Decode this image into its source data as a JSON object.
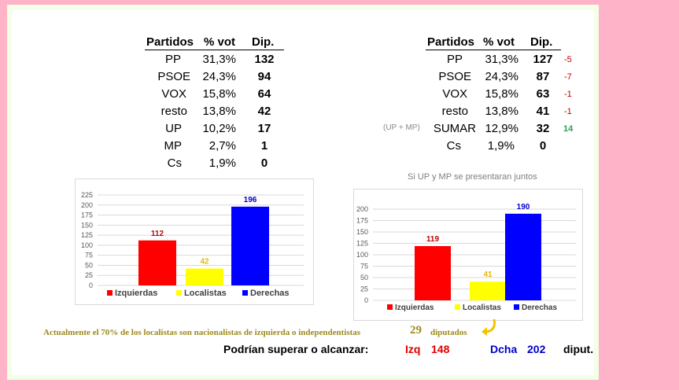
{
  "left_table": {
    "headers": [
      "Partidos",
      "% vot",
      "Dip."
    ],
    "rows": [
      {
        "party": "PP",
        "pct": "31,3%",
        "dip": "132"
      },
      {
        "party": "PSOE",
        "pct": "24,3%",
        "dip": "94"
      },
      {
        "party": "VOX",
        "pct": "15,8%",
        "dip": "64"
      },
      {
        "party": "resto",
        "pct": "13,8%",
        "dip": "42"
      },
      {
        "party": "UP",
        "pct": "10,2%",
        "dip": "17"
      },
      {
        "party": "MP",
        "pct": "2,7%",
        "dip": "1"
      },
      {
        "party": "Cs",
        "pct": "1,9%",
        "dip": "0"
      }
    ]
  },
  "right_table": {
    "headers": [
      "Partidos",
      "% vot",
      "Dip."
    ],
    "rows": [
      {
        "prefix": "",
        "party": "PP",
        "pct": "31,3%",
        "dip": "127",
        "delta": "-5",
        "delta_color": "#c00000"
      },
      {
        "prefix": "",
        "party": "PSOE",
        "pct": "24,3%",
        "dip": "87",
        "delta": "-7",
        "delta_color": "#c00000"
      },
      {
        "prefix": "",
        "party": "VOX",
        "pct": "15,8%",
        "dip": "63",
        "delta": "-1",
        "delta_color": "#c00000"
      },
      {
        "prefix": "",
        "party": "resto",
        "pct": "13,8%",
        "dip": "41",
        "delta": "-1",
        "delta_color": "#c00000"
      },
      {
        "prefix": "(UP + MP)",
        "party": "SUMAR",
        "pct": "12,9%",
        "dip": "32",
        "delta": "14",
        "delta_color": "#2e9e4f"
      },
      {
        "prefix": "",
        "party": "Cs",
        "pct": "1,9%",
        "dip": "0",
        "delta": "",
        "delta_color": "#c00000"
      }
    ]
  },
  "right_caption": "Si UP y MP se presentaran juntos",
  "chart_data": [
    {
      "type": "bar",
      "categories": [
        "Izquierdas",
        "Localistas",
        "Derechas"
      ],
      "values": [
        112,
        42,
        196
      ],
      "colors": [
        "#ff0000",
        "#ffff00",
        "#0000ff"
      ],
      "label_colors": [
        "#c00000",
        "#e6b800",
        "#0000cc"
      ],
      "ylim": [
        0,
        225
      ],
      "yticks": [
        0,
        25,
        50,
        75,
        100,
        125,
        150,
        175,
        200,
        225
      ],
      "legend": "bottom",
      "grid": true
    },
    {
      "type": "bar",
      "categories": [
        "Izquierdas",
        "Localistas",
        "Derechas"
      ],
      "values": [
        119,
        41,
        190
      ],
      "colors": [
        "#ff0000",
        "#ffff00",
        "#0000ff"
      ],
      "label_colors": [
        "#c00000",
        "#e6b800",
        "#0000cc"
      ],
      "ylim": [
        0,
        200
      ],
      "yticks": [
        0,
        25,
        50,
        75,
        100,
        125,
        150,
        175,
        200
      ],
      "legend": "bottom",
      "grid": true
    }
  ],
  "note": {
    "text": "Actualmente el 70% de los localistas son nacionalistas de izquierda o independentistas",
    "number": "29",
    "unit": "diputados"
  },
  "bottom": {
    "lead": "Podrían superar o alcanzar:",
    "izq_label": "Izq",
    "izq_value": "148",
    "dcha_label": "Dcha",
    "dcha_value": "202",
    "unit": "diput."
  }
}
